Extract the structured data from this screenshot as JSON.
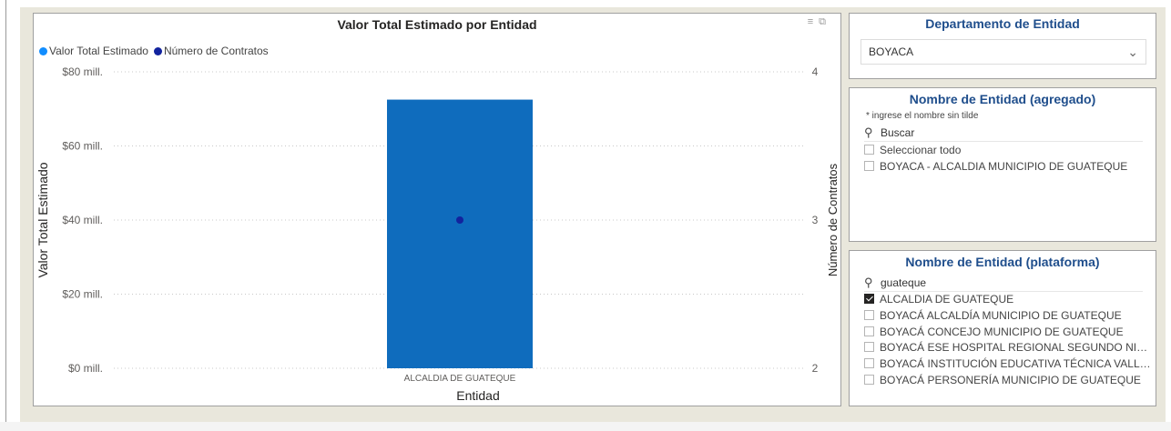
{
  "chart_panel": {
    "title": "Valor Total Estimado por Entidad",
    "icons": [
      "filter-icon",
      "focus-mode-icon"
    ]
  },
  "chart_data": {
    "type": "bar",
    "title": "Valor Total Estimado por Entidad",
    "categories": [
      "ALCALDIA DE GUATEQUE"
    ],
    "xlabel": "Entidad",
    "ylabel": "Valor Total Estimado",
    "y2label": "Número de Contratos",
    "ylim": [
      0,
      80
    ],
    "y_ticks": [
      "$0 mill.",
      "$20 mill.",
      "$40 mill.",
      "$60 mill.",
      "$80 mill."
    ],
    "y2lim": [
      2,
      4
    ],
    "y2_ticks": [
      "2",
      "3",
      "4"
    ],
    "grid": true,
    "legend_position": "top-left",
    "series": [
      {
        "name": "Valor Total Estimado",
        "type": "bar",
        "axis": "left",
        "values": [
          72.5
        ],
        "color": "#118dff"
      },
      {
        "name": "Número de Contratos",
        "type": "point",
        "axis": "right",
        "values": [
          3
        ],
        "color": "#12239e"
      }
    ]
  },
  "colors": {
    "bar_fill": "#0f6cbd",
    "point_fill": "#12239e",
    "slicer_title": "#1f4e8c"
  },
  "dept_slicer": {
    "title": "Departamento de Entidad",
    "selected": "BOYACA"
  },
  "agg_slicer": {
    "title": "Nombre de Entidad (agregado)",
    "hint": "* ingrese el nombre sin tilde",
    "search_placeholder": "Buscar",
    "options": [
      {
        "label": "Seleccionar todo",
        "checked": false
      },
      {
        "label": "BOYACA - ALCALDIA MUNICIPIO DE GUATEQUE",
        "checked": false
      }
    ]
  },
  "plat_slicer": {
    "title": "Nombre de Entidad (plataforma)",
    "search_value": "guateque",
    "options": [
      {
        "label": "ALCALDIA DE GUATEQUE",
        "checked": true
      },
      {
        "label": "BOYACÁ ALCALDÍA MUNICIPIO DE GUATEQUE",
        "checked": false
      },
      {
        "label": "BOYACÁ CONCEJO MUNICIPIO DE GUATEQUE",
        "checked": false
      },
      {
        "label": "BOYACÁ ESE HOSPITAL REGIONAL SEGUNDO NIVEL ...",
        "checked": false
      },
      {
        "label": "BOYACÁ INSTITUCIÓN EDUCATIVA TÉCNICA VALLE ...",
        "checked": false
      },
      {
        "label": "BOYACÁ PERSONERÍA MUNICIPIO DE GUATEQUE",
        "checked": false
      }
    ]
  }
}
